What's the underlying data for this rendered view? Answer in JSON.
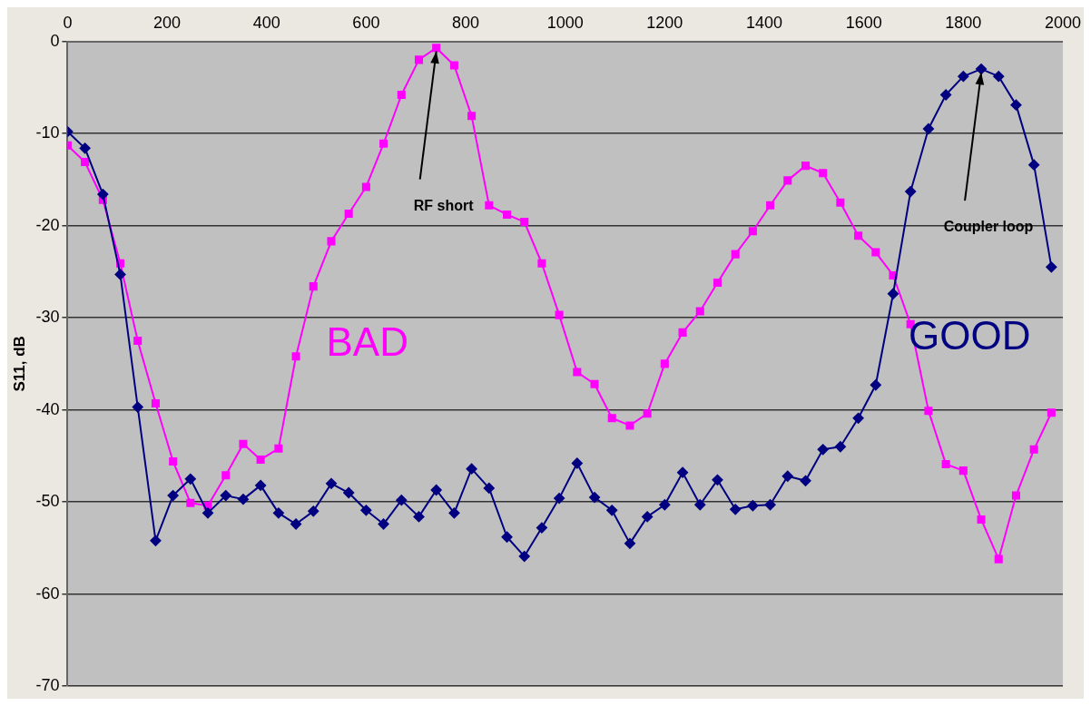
{
  "chart_data": {
    "type": "line",
    "ylabel": "S11, dB",
    "x": [
      0,
      35,
      71,
      106,
      141,
      177,
      212,
      247,
      282,
      318,
      353,
      388,
      424,
      459,
      494,
      530,
      565,
      600,
      635,
      671,
      706,
      741,
      777,
      812,
      847,
      883,
      918,
      953,
      988,
      1024,
      1059,
      1094,
      1130,
      1165,
      1200,
      1236,
      1271,
      1306,
      1342,
      1377,
      1412,
      1447,
      1483,
      1518,
      1553,
      1589,
      1624,
      1659,
      1694,
      1730,
      1765,
      1800,
      1836,
      1871,
      1906,
      1942,
      1977
    ],
    "series": [
      {
        "name": "GOOD",
        "color": "#000080",
        "marker": "diamond",
        "values": [
          -9.8,
          -11.6,
          -16.6,
          -25.3,
          -39.7,
          -54.2,
          -49.3,
          -47.5,
          -51.2,
          -49.3,
          -49.7,
          -48.2,
          -51.2,
          -52.4,
          -51.0,
          -48.0,
          -49.0,
          -50.9,
          -52.4,
          -49.8,
          -51.6,
          -48.7,
          -51.2,
          -46.4,
          -48.5,
          -53.8,
          -55.9,
          -52.8,
          -49.6,
          -45.8,
          -49.5,
          -50.9,
          -54.5,
          -51.6,
          -50.3,
          -46.8,
          -50.3,
          -47.6,
          -50.8,
          -50.4,
          -50.3,
          -47.2,
          -47.7,
          -44.3,
          -44.0,
          -40.9,
          -37.3,
          -27.4,
          -16.3,
          -9.5,
          -5.8,
          -3.8,
          -3.0,
          -3.8,
          -6.9,
          -13.4,
          -24.5
        ]
      },
      {
        "name": "BAD",
        "color": "#ff00ff",
        "marker": "square",
        "values": [
          -11.3,
          -13.1,
          -17.2,
          -24.1,
          -32.5,
          -39.3,
          -45.6,
          -50.1,
          -50.4,
          -47.1,
          -43.7,
          -45.4,
          -44.2,
          -34.2,
          -26.6,
          -21.7,
          -18.7,
          -15.8,
          -11.1,
          -5.8,
          -2.0,
          -0.7,
          -2.6,
          -8.1,
          -17.8,
          -18.8,
          -19.6,
          -24.1,
          -29.7,
          -35.9,
          -37.2,
          -40.9,
          -41.7,
          -40.4,
          -35.0,
          -31.6,
          -29.3,
          -26.2,
          -23.1,
          -20.6,
          -17.8,
          -15.1,
          -13.5,
          -14.3,
          -17.5,
          -21.1,
          -22.9,
          -25.4,
          -30.7,
          -40.1,
          -45.9,
          -46.6,
          -51.9,
          -56.2,
          -49.3,
          -44.3,
          -40.3
        ]
      }
    ],
    "xlim": [
      0,
      2000
    ],
    "xticks": [
      0,
      200,
      400,
      600,
      800,
      1000,
      1200,
      1400,
      1600,
      1800,
      2000
    ],
    "ylim": [
      -70,
      0
    ],
    "yticks": [
      -70,
      -60,
      -50,
      -40,
      -30,
      -20,
      -10,
      0
    ],
    "grid": "y",
    "legend": false,
    "line_style": "solid",
    "annotations": [
      {
        "text": "RF short",
        "x": 741,
        "y": -0.7
      },
      {
        "text": "Coupler loop",
        "x": 1836,
        "y": -3.0
      }
    ]
  }
}
